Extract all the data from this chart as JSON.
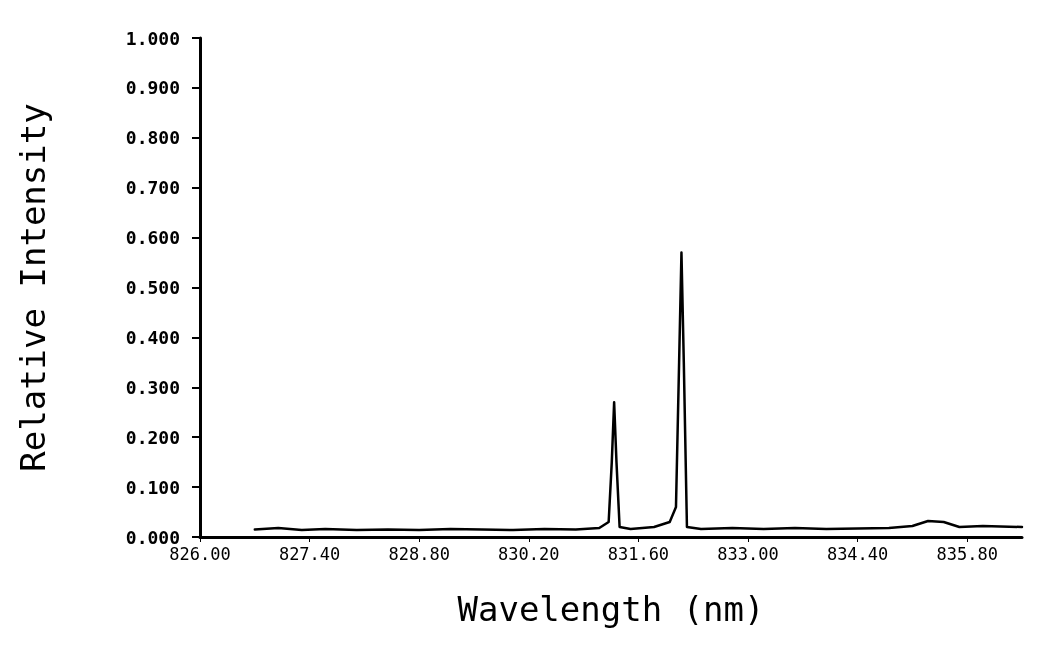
{
  "chart_data": {
    "type": "line",
    "xlabel": "Wavelength (nm)",
    "ylabel": "Relative Intensity",
    "xlim": [
      826,
      836.5
    ],
    "ylim": [
      0,
      1
    ],
    "xticks": [
      {
        "value": 826,
        "label": "826.00"
      },
      {
        "value": 827.4,
        "label": "827.40"
      },
      {
        "value": 828.8,
        "label": "828.80"
      },
      {
        "value": 830.2,
        "label": "830.20"
      },
      {
        "value": 831.6,
        "label": "831.60"
      },
      {
        "value": 833,
        "label": "833.00"
      },
      {
        "value": 834.4,
        "label": "834.40"
      },
      {
        "value": 835.8,
        "label": "835.80"
      }
    ],
    "yticks": [
      {
        "value": 0,
        "label": "0.000"
      },
      {
        "value": 0.1,
        "label": "0.100"
      },
      {
        "value": 0.2,
        "label": "0.200"
      },
      {
        "value": 0.3,
        "label": "0.300"
      },
      {
        "value": 0.4,
        "label": "0.400"
      },
      {
        "value": 0.5,
        "label": "0.500"
      },
      {
        "value": 0.6,
        "label": "0.600"
      },
      {
        "value": 0.7,
        "label": "0.700"
      },
      {
        "value": 0.8,
        "label": "0.800"
      },
      {
        "value": 0.9,
        "label": "0.900"
      },
      {
        "value": 1,
        "label": "1.000"
      }
    ],
    "grid": false,
    "marker": "none",
    "line_style": "solid",
    "series": [
      {
        "color": "#000000",
        "x": [
          826.7,
          827,
          827.3,
          827.6,
          828,
          828.4,
          828.8,
          829.2,
          829.6,
          830,
          830.4,
          830.8,
          831.1,
          831.22,
          831.26,
          831.29,
          831.32,
          831.36,
          831.5,
          831.8,
          832.0,
          832.08,
          832.12,
          832.15,
          832.18,
          832.22,
          832.4,
          832.8,
          833.2,
          833.6,
          834,
          834.4,
          834.8,
          835.1,
          835.3,
          835.5,
          835.7,
          836,
          836.5
        ],
        "values": [
          0.015,
          0.018,
          0.014,
          0.016,
          0.014,
          0.015,
          0.014,
          0.016,
          0.015,
          0.014,
          0.016,
          0.015,
          0.018,
          0.03,
          0.15,
          0.27,
          0.15,
          0.02,
          0.016,
          0.02,
          0.03,
          0.06,
          0.35,
          0.57,
          0.35,
          0.02,
          0.016,
          0.018,
          0.016,
          0.018,
          0.016,
          0.017,
          0.018,
          0.022,
          0.032,
          0.03,
          0.02,
          0.022,
          0.02
        ]
      }
    ]
  }
}
